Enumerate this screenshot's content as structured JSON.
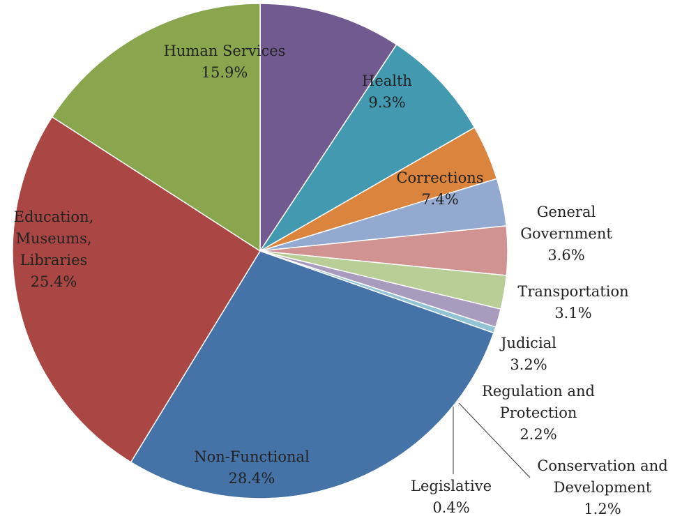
{
  "chart_data": {
    "type": "pie",
    "title": "",
    "start": "12 o'clock, clockwise",
    "slices": [
      {
        "label_lines": [
          "Health"
        ],
        "pct_text": "9.3%",
        "value": 9.3,
        "color": "#705A8F"
      },
      {
        "label_lines": [
          "Corrections"
        ],
        "pct_text": "7.4%",
        "value": 7.4,
        "color": "#4299B0"
      },
      {
        "label_lines": [
          "General",
          "Government"
        ],
        "pct_text": "3.6%",
        "value": 3.6,
        "color": "#DB843D"
      },
      {
        "label_lines": [
          "Transportation"
        ],
        "pct_text": "3.1%",
        "value": 3.1,
        "color": "#93A9CF"
      },
      {
        "label_lines": [
          "Judicial"
        ],
        "pct_text": "3.2%",
        "value": 3.2,
        "color": "#D19392"
      },
      {
        "label_lines": [
          "Regulation and",
          "Protection"
        ],
        "pct_text": "2.2%",
        "value": 2.2,
        "color": "#B9CD96"
      },
      {
        "label_lines": [
          "Conservation and",
          "Development"
        ],
        "pct_text": "1.2%",
        "value": 1.2,
        "color": "#A99BBD"
      },
      {
        "label_lines": [
          "Legislative"
        ],
        "pct_text": "0.4%",
        "value": 0.4,
        "color": "#92C3D4"
      },
      {
        "label_lines": [
          "Non-Functional"
        ],
        "pct_text": "28.4%",
        "value": 28.4,
        "color": "#4572A7"
      },
      {
        "label_lines": [
          "Education,",
          "Museums,",
          "Libraries"
        ],
        "pct_text": "25.4%",
        "value": 25.4,
        "color": "#AA4643"
      },
      {
        "label_lines": [
          "Human Services"
        ],
        "pct_text": "15.9%",
        "value": 15.9,
        "color": "#89A54E"
      }
    ]
  }
}
